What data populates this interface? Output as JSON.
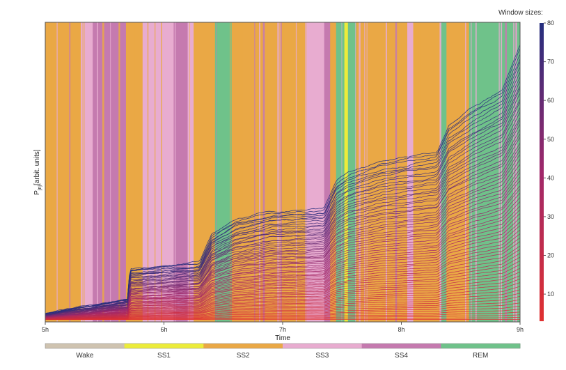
{
  "chart_data": {
    "type": "line",
    "xlabel": "Time",
    "ylabel": "P",
    "ylabel_sub": "jnj",
    "ylabel_rest": "[arbit. units]",
    "x_ticks": [
      "5h",
      "6h",
      "7h",
      "8h",
      "9h"
    ],
    "xlim": [
      5,
      9
    ],
    "colorbar": {
      "title": "Window sizes:",
      "min": 3,
      "max": 80,
      "ticks": [
        10,
        20,
        30,
        40,
        50,
        60,
        70,
        80
      ],
      "low_color": "#e03030",
      "mid_color": "#a0286a",
      "high_color": "#252e7e"
    },
    "stage_legend": [
      {
        "label": "Wake",
        "color": "#cfc3b0"
      },
      {
        "label": "SS1",
        "color": "#ecec3a"
      },
      {
        "label": "SS2",
        "color": "#eaa845"
      },
      {
        "label": "SS3",
        "color": "#e8acd0"
      },
      {
        "label": "SS4",
        "color": "#c57aaf"
      },
      {
        "label": "REM",
        "color": "#6fc28a"
      }
    ],
    "stage_segments": [
      {
        "stage": "SS2",
        "start": 5.0,
        "end": 5.3
      },
      {
        "stage": "SS3",
        "start": 5.3,
        "end": 5.4
      },
      {
        "stage": "SS4",
        "start": 5.4,
        "end": 5.68
      },
      {
        "stage": "SS2",
        "start": 5.68,
        "end": 5.82
      },
      {
        "stage": "SS3",
        "start": 5.82,
        "end": 6.1
      },
      {
        "stage": "SS4",
        "start": 6.1,
        "end": 6.2
      },
      {
        "stage": "SS3",
        "start": 6.2,
        "end": 6.25
      },
      {
        "stage": "SS2",
        "start": 6.25,
        "end": 6.43
      },
      {
        "stage": "REM",
        "start": 6.43,
        "end": 6.57
      },
      {
        "stage": "SS2",
        "start": 6.57,
        "end": 7.2
      },
      {
        "stage": "SS3",
        "start": 7.2,
        "end": 7.35
      },
      {
        "stage": "SS4",
        "start": 7.35,
        "end": 7.4
      },
      {
        "stage": "SS2",
        "start": 7.4,
        "end": 7.45
      },
      {
        "stage": "REM",
        "start": 7.45,
        "end": 7.52
      },
      {
        "stage": "SS1",
        "start": 7.52,
        "end": 7.55
      },
      {
        "stage": "REM",
        "start": 7.55,
        "end": 7.62
      },
      {
        "stage": "SS2",
        "start": 7.62,
        "end": 8.05
      },
      {
        "stage": "SS3",
        "start": 8.05,
        "end": 8.1
      },
      {
        "stage": "SS2",
        "start": 8.1,
        "end": 8.33
      },
      {
        "stage": "REM",
        "start": 8.33,
        "end": 8.38
      },
      {
        "stage": "SS2",
        "start": 8.38,
        "end": 8.57
      },
      {
        "stage": "REM",
        "start": 8.57,
        "end": 9.0
      }
    ],
    "curve_levels": [
      {
        "t": 5.0,
        "y": 0.02
      },
      {
        "t": 5.7,
        "y": 0.07
      },
      {
        "t": 5.71,
        "y": 0.17
      },
      {
        "t": 6.3,
        "y": 0.19
      },
      {
        "t": 6.4,
        "y": 0.28
      },
      {
        "t": 6.6,
        "y": 0.33
      },
      {
        "t": 6.9,
        "y": 0.36
      },
      {
        "t": 7.35,
        "y": 0.37
      },
      {
        "t": 7.45,
        "y": 0.46
      },
      {
        "t": 7.55,
        "y": 0.49
      },
      {
        "t": 7.85,
        "y": 0.53
      },
      {
        "t": 8.3,
        "y": 0.56
      },
      {
        "t": 8.4,
        "y": 0.65
      },
      {
        "t": 8.6,
        "y": 0.71
      },
      {
        "t": 8.85,
        "y": 0.77
      },
      {
        "t": 9.0,
        "y": 0.92
      }
    ]
  }
}
